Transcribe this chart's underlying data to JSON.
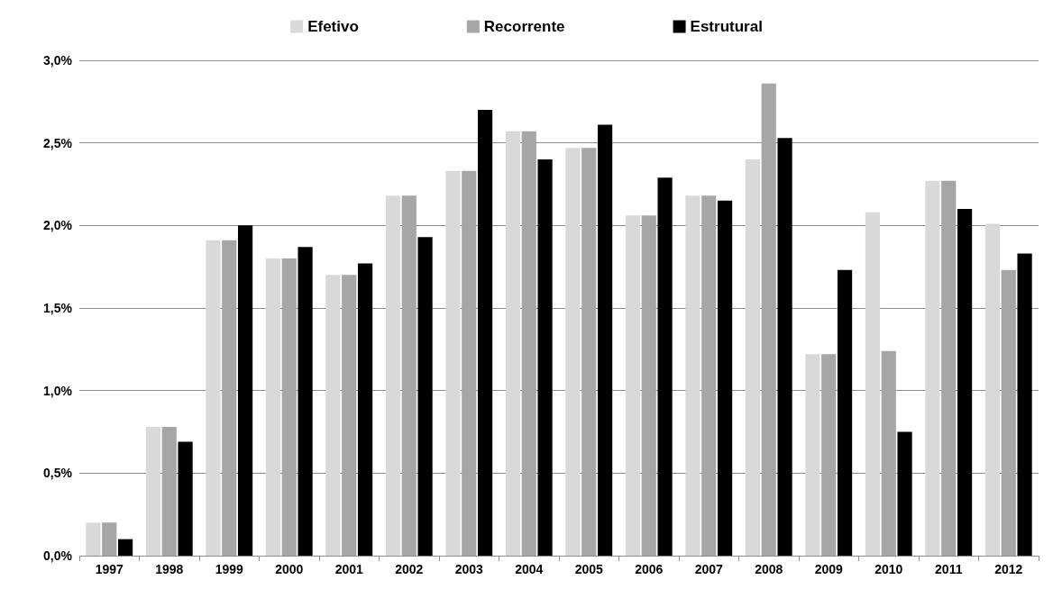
{
  "chart_data": {
    "type": "bar",
    "categories": [
      "1997",
      "1998",
      "1999",
      "2000",
      "2001",
      "2002",
      "2003",
      "2004",
      "2005",
      "2006",
      "2007",
      "2008",
      "2009",
      "2010",
      "2011",
      "2012"
    ],
    "series": [
      {
        "name": "Efetivo",
        "color": "#d9d9d9",
        "values": [
          0.2,
          0.78,
          1.91,
          1.8,
          1.7,
          2.18,
          2.33,
          2.57,
          2.47,
          2.06,
          2.18,
          2.4,
          1.22,
          2.08,
          2.27,
          2.01
        ]
      },
      {
        "name": "Recorrente",
        "color": "#a6a6a6",
        "values": [
          0.2,
          0.78,
          1.91,
          1.8,
          1.7,
          2.18,
          2.33,
          2.57,
          2.47,
          2.06,
          2.18,
          2.86,
          1.22,
          1.24,
          2.27,
          1.73
        ]
      },
      {
        "name": "Estrutural",
        "color": "#000000",
        "values": [
          0.1,
          0.69,
          2.0,
          1.87,
          1.77,
          1.93,
          2.7,
          2.4,
          2.61,
          2.29,
          2.15,
          2.53,
          1.73,
          0.75,
          2.1,
          1.83
        ]
      }
    ],
    "ylim": [
      0,
      3
    ],
    "yticks": [
      {
        "value": 0,
        "label": "0,0%"
      },
      {
        "value": 0.5,
        "label": "0,5%"
      },
      {
        "value": 1,
        "label": "1,0%"
      },
      {
        "value": 1.5,
        "label": "1,5%"
      },
      {
        "value": 2,
        "label": "2,0%"
      },
      {
        "value": 2.5,
        "label": "2,5%"
      },
      {
        "value": 3,
        "label": "3,0%"
      }
    ],
    "grid": "y",
    "legend": "top"
  }
}
